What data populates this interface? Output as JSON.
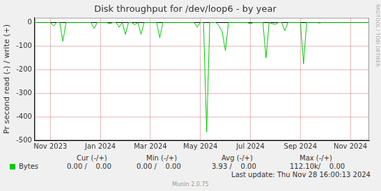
{
  "chart_data": {
    "type": "line",
    "title": "Disk throughput for /dev/loop6 - by year",
    "y_label": "Pr second read (-) / write (+)",
    "watermark": "RRDTOOL / TOBI OETIKER",
    "categories": [
      null,
      null,
      null,
      null,
      null,
      "Nov 2023",
      null,
      null,
      null,
      null,
      null,
      null,
      null,
      null,
      null,
      null,
      null,
      null,
      null,
      null,
      null,
      "Jan 2024",
      null,
      null,
      null,
      null,
      null,
      null,
      null,
      null,
      null,
      null,
      null,
      null,
      null,
      null,
      null,
      "Mar 2024",
      null,
      null,
      null,
      null,
      null,
      null,
      null,
      null,
      null,
      null,
      null,
      null,
      null,
      null,
      null,
      "May 2024",
      null,
      null,
      null,
      null,
      null,
      null,
      null,
      null,
      null,
      null,
      null,
      null,
      null,
      null,
      null,
      "Jul 2024",
      null,
      null,
      null,
      null,
      null,
      null,
      null,
      null,
      null,
      null,
      null,
      null,
      null,
      null,
      null,
      "Sep 2024",
      null,
      null,
      null,
      null,
      null,
      null,
      null,
      null,
      null,
      null,
      null,
      null,
      null,
      null,
      null,
      "Nov 2024",
      null,
      null,
      null,
      null,
      null,
      null
    ],
    "series": [
      {
        "name": "Bytes",
        "color": "#00cc00",
        "values": [
          0,
          0,
          0,
          0,
          0,
          0,
          -15,
          0,
          0,
          -80,
          0,
          0,
          0,
          0,
          0,
          0,
          0,
          0,
          0,
          -25,
          0,
          0,
          0,
          0,
          -5,
          0,
          0,
          -20,
          0,
          -50,
          0,
          0,
          -10,
          0,
          -50,
          0,
          0,
          0,
          0,
          0,
          -65,
          0,
          0,
          0,
          0,
          0,
          0,
          0,
          0,
          0,
          0,
          0,
          -20,
          0,
          0,
          -465,
          0,
          0,
          0,
          -15,
          -40,
          -120,
          0,
          0,
          0,
          0,
          0,
          0,
          0,
          -5,
          0,
          0,
          0,
          0,
          -150,
          0,
          -5,
          -8,
          0,
          0,
          -35,
          0,
          0,
          0,
          0,
          0,
          -175,
          0,
          0,
          0,
          0,
          -2,
          0,
          0,
          0,
          0,
          0,
          0,
          0,
          0,
          0,
          0,
          0,
          0,
          0,
          0,
          0,
          0
        ]
      }
    ],
    "ylim": [
      -500,
      20
    ],
    "yticks": [
      -500,
      -400,
      -300,
      -200,
      -100,
      0
    ],
    "grid": true,
    "legend_table": {
      "headers": [
        "Cur (-/+)",
        "Min (-/+)",
        "Avg (-/+)",
        "Max (-/+)"
      ],
      "rows": [
        {
          "label": "Bytes",
          "cells": [
            "0.00 /    0.00",
            "0.00 /    0.00",
            "3.93 /    0.00",
            "112.10k/    0.00"
          ]
        }
      ]
    },
    "last_update": "Last update: Thu Nov 28 16:00:13 2024",
    "footer": "Munin 2.0.75"
  }
}
